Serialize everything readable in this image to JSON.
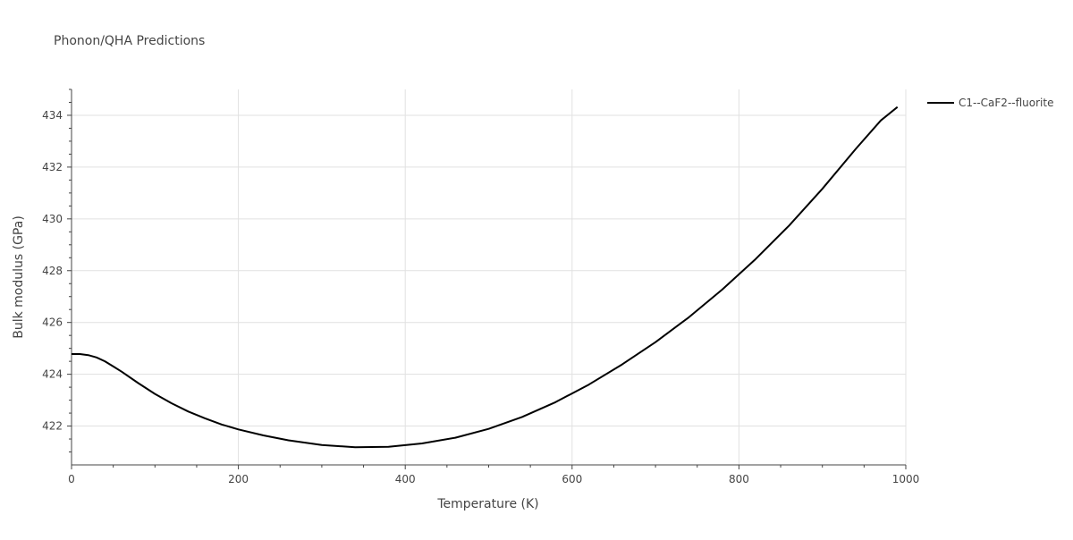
{
  "chart_data": {
    "type": "line",
    "title": "Phonon/QHA Predictions",
    "xlabel": "Temperature (K)",
    "ylabel": "Bulk modulus (GPa)",
    "xlim": [
      0,
      1000
    ],
    "ylim": [
      420.5,
      435
    ],
    "x_ticks": [
      0,
      200,
      400,
      600,
      800,
      1000
    ],
    "y_ticks": [
      422,
      424,
      426,
      428,
      430,
      432,
      434
    ],
    "grid": true,
    "legend_position": "top-right",
    "series": [
      {
        "name": "C1--CaF2--fluorite",
        "color": "#000000",
        "x": [
          0,
          10,
          20,
          30,
          40,
          50,
          60,
          80,
          100,
          120,
          140,
          160,
          180,
          200,
          230,
          260,
          300,
          340,
          380,
          420,
          460,
          500,
          540,
          580,
          620,
          660,
          700,
          740,
          780,
          820,
          860,
          900,
          940,
          970,
          990
        ],
        "y": [
          424.78,
          424.78,
          424.74,
          424.65,
          424.5,
          424.3,
          424.1,
          423.66,
          423.24,
          422.88,
          422.56,
          422.3,
          422.06,
          421.87,
          421.64,
          421.45,
          421.27,
          421.18,
          421.2,
          421.33,
          421.55,
          421.89,
          422.35,
          422.92,
          423.6,
          424.38,
          425.24,
          426.2,
          427.27,
          428.45,
          429.74,
          431.16,
          432.7,
          433.8,
          434.32
        ]
      }
    ]
  }
}
